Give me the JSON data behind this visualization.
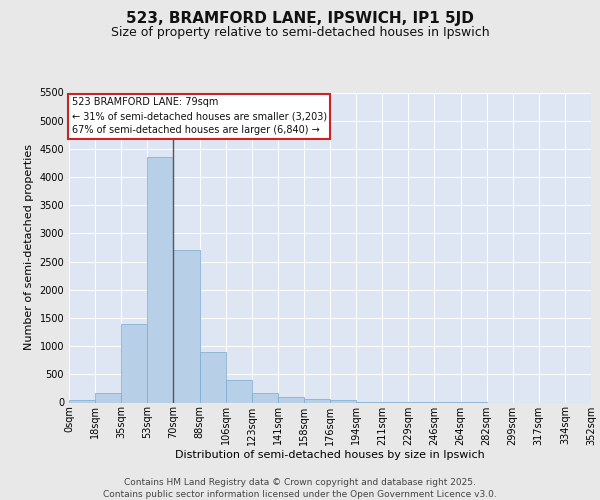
{
  "title": "523, BRAMFORD LANE, IPSWICH, IP1 5JD",
  "subtitle": "Size of property relative to semi-detached houses in Ipswich",
  "xlabel": "Distribution of semi-detached houses by size in Ipswich",
  "ylabel": "Number of semi-detached properties",
  "fig_background_color": "#e8e8e8",
  "plot_background_color": "#dde6f2",
  "bar_color": "#b8cfe8",
  "bar_edge_color": "#7aaad0",
  "grid_color": "#ffffff",
  "property_line_color": "#555555",
  "annotation_edge_color": "#cc2222",
  "annotation_title": "523 BRAMFORD LANE: 79sqm",
  "annotation_smaller": "← 31% of semi-detached houses are smaller (3,203)",
  "annotation_larger": "67% of semi-detached houses are larger (6,840) →",
  "bin_labels": [
    "0sqm",
    "18sqm",
    "35sqm",
    "53sqm",
    "70sqm",
    "88sqm",
    "106sqm",
    "123sqm",
    "141sqm",
    "158sqm",
    "176sqm",
    "194sqm",
    "211sqm",
    "229sqm",
    "246sqm",
    "264sqm",
    "282sqm",
    "299sqm",
    "317sqm",
    "334sqm",
    "352sqm"
  ],
  "counts": [
    38,
    170,
    1390,
    4360,
    2700,
    890,
    400,
    160,
    100,
    62,
    38,
    8,
    4,
    2,
    1,
    1,
    0,
    0,
    0,
    0
  ],
  "property_bin_index": 4,
  "ylim": [
    0,
    5500
  ],
  "yticks": [
    0,
    500,
    1000,
    1500,
    2000,
    2500,
    3000,
    3500,
    4000,
    4500,
    5000,
    5500
  ],
  "footer_line1": "Contains HM Land Registry data © Crown copyright and database right 2025.",
  "footer_line2": "Contains public sector information licensed under the Open Government Licence v3.0.",
  "title_fontsize": 11,
  "subtitle_fontsize": 9,
  "axis_label_fontsize": 8,
  "tick_fontsize": 7,
  "annotation_fontsize": 7,
  "footer_fontsize": 6.5
}
